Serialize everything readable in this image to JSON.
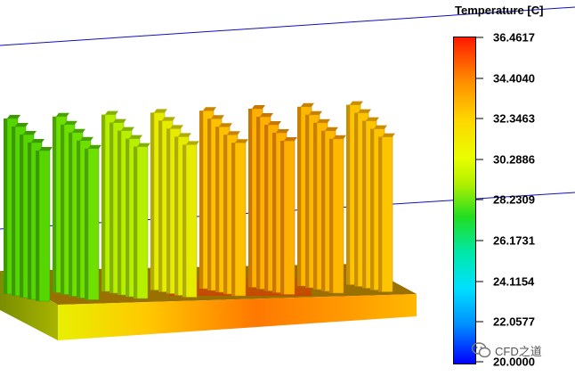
{
  "legend": {
    "title": "Temperature [C]",
    "colors": {
      "max": "#ff1a00",
      "min": "#0000ff"
    },
    "ticks": [
      "36.4617",
      "34.4040",
      "32.3463",
      "30.2886",
      "28.2309",
      "26.1731",
      "24.1154",
      "22.0577",
      "20.0000"
    ]
  },
  "watermark": {
    "text": "CFD之道",
    "icon": "wechat-icon"
  }
}
